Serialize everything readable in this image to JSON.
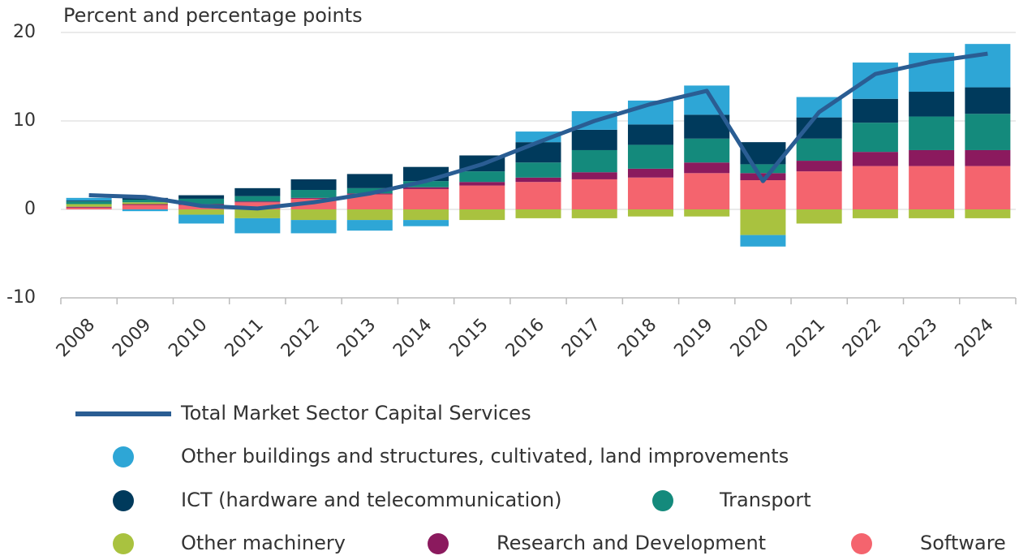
{
  "chart_data": {
    "type": "bar",
    "stacked": true,
    "y_label": "Percent and percentage points",
    "categories": [
      "2008",
      "2009",
      "2010",
      "2011",
      "2012",
      "2013",
      "2014",
      "2015",
      "2016",
      "2017",
      "2018",
      "2019",
      "2020",
      "2021",
      "2022",
      "2023",
      "2024"
    ],
    "ylim": [
      -10,
      20
    ],
    "yticks": [
      -10,
      0,
      10,
      20
    ],
    "grid": true,
    "series": [
      {
        "name": "Total Market Sector Capital Services",
        "type": "line",
        "color": "#2a5d93",
        "values": [
          1.6,
          1.4,
          0.4,
          0.1,
          0.8,
          1.8,
          3.2,
          5.1,
          7.6,
          10.0,
          11.9,
          13.4,
          3.2,
          11.0,
          15.3,
          16.7,
          17.6
        ]
      },
      {
        "name": "Other buildings and structures, cultivated, land improvements",
        "color": "#2ea6d6",
        "values": [
          0.3,
          -0.2,
          -1.0,
          -1.7,
          -1.5,
          -1.2,
          -0.7,
          0,
          1.2,
          2.1,
          2.7,
          3.3,
          -1.3,
          2.3,
          4.1,
          4.4,
          4.9
        ]
      },
      {
        "name": "ICT (hardware and telecommunication)",
        "color": "#003a5c",
        "values": [
          0.1,
          0.2,
          0.4,
          0.9,
          1.2,
          1.6,
          1.6,
          1.8,
          2.3,
          2.3,
          2.3,
          2.7,
          2.5,
          2.4,
          2.7,
          2.8,
          3.0
        ]
      },
      {
        "name": "Transport",
        "color": "#148a7c",
        "values": [
          0.3,
          0.3,
          0.6,
          0.6,
          0.9,
          0.6,
          0.7,
          1.2,
          1.7,
          2.5,
          2.7,
          2.7,
          1.0,
          2.5,
          3.3,
          3.8,
          4.1
        ]
      },
      {
        "name": "Other machinery",
        "color": "#a9c23f",
        "values": [
          0.3,
          0.2,
          -0.6,
          -1.0,
          -1.2,
          -1.2,
          -1.2,
          -1.2,
          -1.0,
          -1.0,
          -0.8,
          -0.8,
          -2.9,
          -1.6,
          -1.0,
          -1.0,
          -1.0
        ]
      },
      {
        "name": "Research and Development",
        "color": "#8b1a5e",
        "values": [
          0.1,
          0.1,
          0.1,
          0.1,
          0.1,
          0.1,
          0.2,
          0.4,
          0.5,
          0.8,
          1.0,
          1.2,
          0.8,
          1.2,
          1.6,
          1.8,
          1.8
        ]
      },
      {
        "name": "Software",
        "color": "#f4646e",
        "values": [
          0.2,
          0.5,
          0.5,
          0.8,
          1.2,
          1.7,
          2.3,
          2.7,
          3.1,
          3.4,
          3.6,
          4.1,
          3.3,
          4.3,
          4.9,
          4.9,
          4.9
        ]
      }
    ]
  }
}
